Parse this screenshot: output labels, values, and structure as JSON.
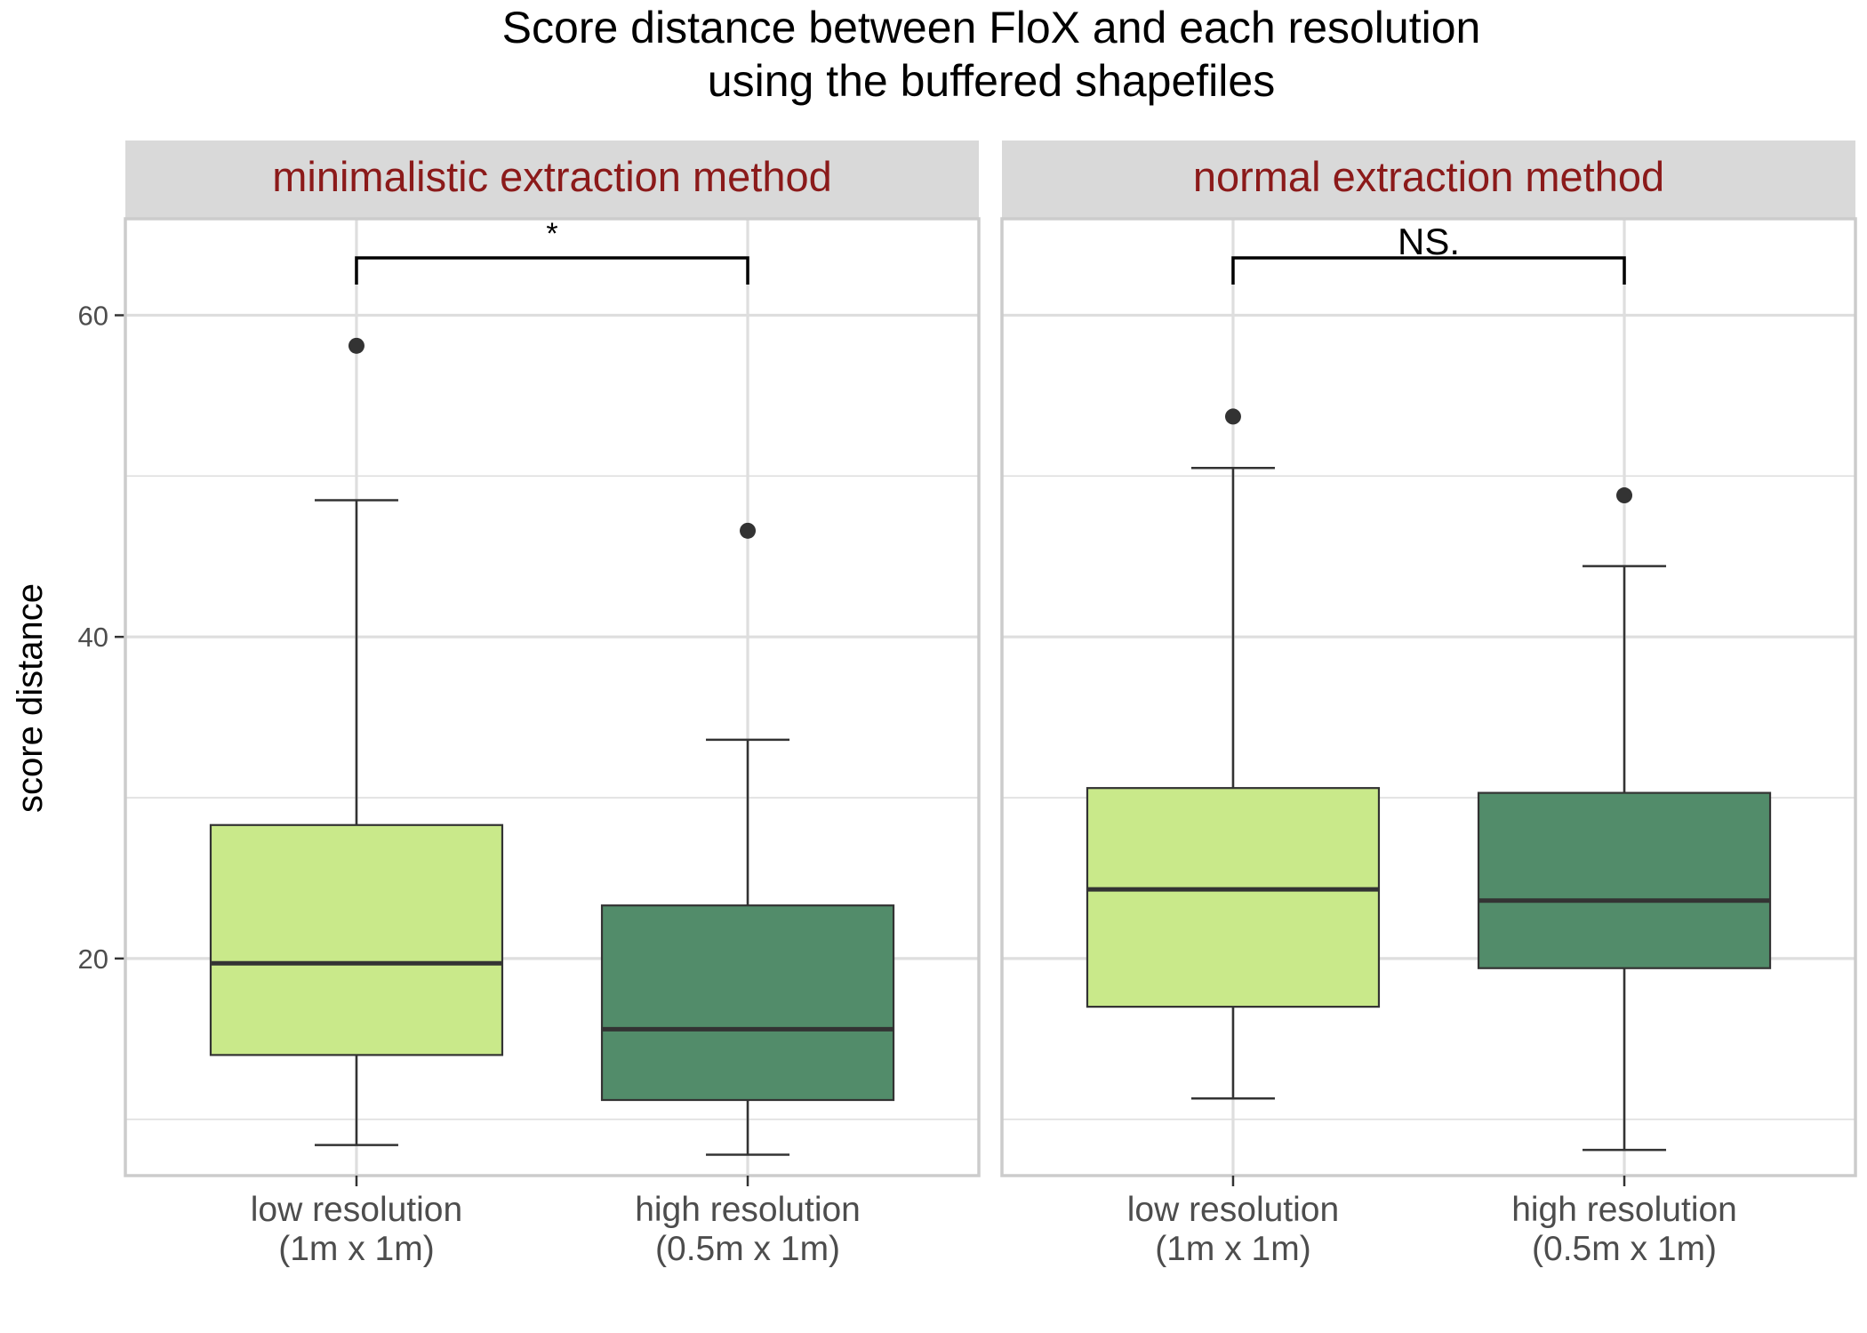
{
  "chart_data": {
    "type": "boxplot",
    "title": [
      "Score distance between FloX and each resolution",
      "using the buffered shapefiles"
    ],
    "ylabel": "score distance",
    "xlabel": "",
    "ylim": [
      6.5,
      66
    ],
    "y_major_ticks": [
      20,
      40,
      60
    ],
    "y_minor_gridlines": [
      10,
      30,
      50
    ],
    "grid": true,
    "legend": "none",
    "categories": [
      [
        "low resolution",
        "(1m x 1m)"
      ],
      [
        "high resolution",
        "(0.5m x 1m)"
      ]
    ],
    "colors": {
      "low": "#c9e98a",
      "high": "#528c6a",
      "strip_text": "#8b1a1a",
      "strip_bg": "#d9d9d9",
      "grid": "#dedede",
      "border": "#cccccc"
    },
    "panels": [
      {
        "label": "minimalistic extraction method",
        "significance": "*",
        "boxes": [
          {
            "category": "low",
            "whisker_low": 8.4,
            "q1": 14.0,
            "median": 19.7,
            "q3": 28.3,
            "whisker_high": 48.5,
            "outliers": [
              58.1
            ]
          },
          {
            "category": "high",
            "whisker_low": 7.8,
            "q1": 11.2,
            "median": 15.6,
            "q3": 23.3,
            "whisker_high": 33.6,
            "outliers": [
              46.6
            ]
          }
        ]
      },
      {
        "label": "normal extraction method",
        "significance": "NS.",
        "boxes": [
          {
            "category": "low",
            "whisker_low": 11.3,
            "q1": 17.0,
            "median": 24.3,
            "q3": 30.6,
            "whisker_high": 50.5,
            "outliers": [
              53.7
            ]
          },
          {
            "category": "high",
            "whisker_low": 8.1,
            "q1": 19.4,
            "median": 23.6,
            "q3": 30.3,
            "whisker_high": 44.4,
            "outliers": [
              48.8
            ]
          }
        ]
      }
    ]
  }
}
